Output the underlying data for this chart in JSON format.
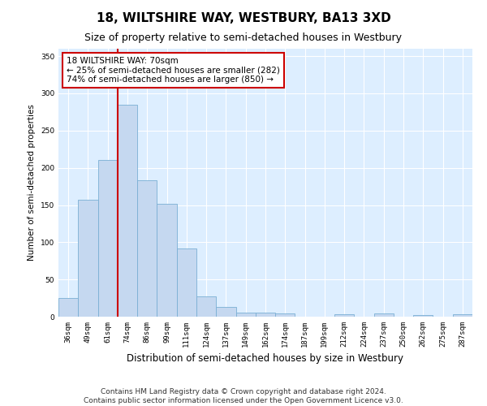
{
  "title": "18, WILTSHIRE WAY, WESTBURY, BA13 3XD",
  "subtitle": "Size of property relative to semi-detached houses in Westbury",
  "xlabel": "Distribution of semi-detached houses by size in Westbury",
  "ylabel": "Number of semi-detached properties",
  "categories": [
    "36sqm",
    "49sqm",
    "61sqm",
    "74sqm",
    "86sqm",
    "99sqm",
    "111sqm",
    "124sqm",
    "137sqm",
    "149sqm",
    "162sqm",
    "174sqm",
    "187sqm",
    "199sqm",
    "212sqm",
    "224sqm",
    "237sqm",
    "250sqm",
    "262sqm",
    "275sqm",
    "287sqm"
  ],
  "values": [
    25,
    157,
    210,
    285,
    183,
    152,
    92,
    27,
    13,
    6,
    5,
    4,
    0,
    0,
    3,
    0,
    4,
    0,
    2,
    0,
    3
  ],
  "bar_color": "#c5d8f0",
  "bar_edge_color": "#7aafd4",
  "vline_x": 2.5,
  "vline_color": "#cc0000",
  "annotation_text": "18 WILTSHIRE WAY: 70sqm\n← 25% of semi-detached houses are smaller (282)\n74% of semi-detached houses are larger (850) →",
  "annotation_box_color": "#ffffff",
  "annotation_box_edge": "#cc0000",
  "ylim": [
    0,
    360
  ],
  "yticks": [
    0,
    50,
    100,
    150,
    200,
    250,
    300,
    350
  ],
  "footer1": "Contains HM Land Registry data © Crown copyright and database right 2024.",
  "footer2": "Contains public sector information licensed under the Open Government Licence v3.0.",
  "bg_color": "#ffffff",
  "plot_bg": "#ddeeff",
  "grid_color": "#ffffff",
  "title_fontsize": 11,
  "subtitle_fontsize": 9,
  "xlabel_fontsize": 8.5,
  "ylabel_fontsize": 7.5,
  "tick_fontsize": 6.5,
  "annotation_fontsize": 7.5,
  "footer_fontsize": 6.5
}
